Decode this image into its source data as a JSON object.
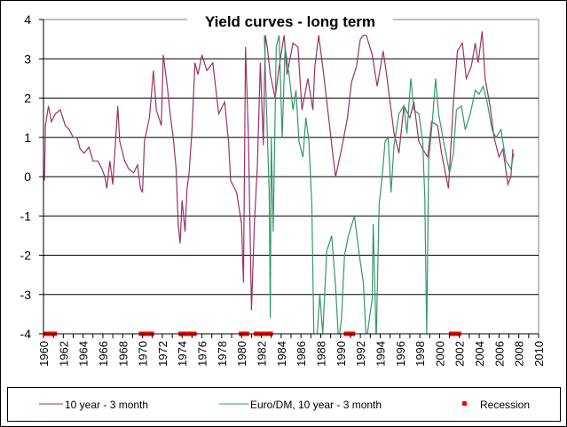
{
  "chart_data": {
    "type": "line",
    "title": "Yield curves - long term",
    "xlabel": "",
    "ylabel": "",
    "xlim": [
      1960,
      2010
    ],
    "ylim": [
      -4,
      4
    ],
    "x_ticks": [
      "1960",
      "1962",
      "1964",
      "1966",
      "1968",
      "1970",
      "1972",
      "1974",
      "1976",
      "1978",
      "1980",
      "1982",
      "1984",
      "1986",
      "1988",
      "1990",
      "1992",
      "1994",
      "1996",
      "1998",
      "2000",
      "2002",
      "2004",
      "2006",
      "2008",
      "2010"
    ],
    "y_ticks": [
      "-4",
      "-3",
      "-2",
      "-1",
      "0",
      "1",
      "2",
      "3",
      "4"
    ],
    "grid": "horizontal",
    "legend_position": "bottom",
    "colors": {
      "us": "#993366",
      "euro": "#339966",
      "recession": "#ff0000",
      "grid": "#000000",
      "frame": "#808080"
    },
    "series": [
      {
        "name": "10 year - 3 month",
        "color": "#993366",
        "points": [
          [
            1960.0,
            0.1
          ],
          [
            1960.1,
            -0.1
          ],
          [
            1960.2,
            1.3
          ],
          [
            1960.5,
            1.8
          ],
          [
            1960.8,
            1.4
          ],
          [
            1961.2,
            1.6
          ],
          [
            1961.7,
            1.7
          ],
          [
            1962.2,
            1.3
          ],
          [
            1962.6,
            1.2
          ],
          [
            1963.0,
            1.0
          ],
          [
            1963.4,
            1.0
          ],
          [
            1963.7,
            0.7
          ],
          [
            1964.1,
            0.6
          ],
          [
            1964.6,
            0.75
          ],
          [
            1965.0,
            0.4
          ],
          [
            1965.5,
            0.4
          ],
          [
            1965.9,
            0.2
          ],
          [
            1966.2,
            0.0
          ],
          [
            1966.4,
            -0.3
          ],
          [
            1966.7,
            0.4
          ],
          [
            1967.0,
            -0.2
          ],
          [
            1967.3,
            1.0
          ],
          [
            1967.5,
            1.8
          ],
          [
            1967.7,
            0.9
          ],
          [
            1968.2,
            0.4
          ],
          [
            1968.6,
            0.2
          ],
          [
            1969.1,
            0.1
          ],
          [
            1969.5,
            0.3
          ],
          [
            1969.8,
            -0.3
          ],
          [
            1970.0,
            -0.4
          ],
          [
            1970.2,
            0.9
          ],
          [
            1970.7,
            1.5
          ],
          [
            1971.1,
            2.7
          ],
          [
            1971.4,
            1.7
          ],
          [
            1971.9,
            1.3
          ],
          [
            1972.1,
            3.1
          ],
          [
            1972.5,
            2.3
          ],
          [
            1972.8,
            1.6
          ],
          [
            1973.1,
            1.0
          ],
          [
            1973.4,
            0.2
          ],
          [
            1973.6,
            -1.2
          ],
          [
            1973.8,
            -1.7
          ],
          [
            1974.0,
            -0.6
          ],
          [
            1974.3,
            -1.4
          ],
          [
            1974.5,
            -0.3
          ],
          [
            1974.7,
            0.1
          ],
          [
            1975.0,
            1.2
          ],
          [
            1975.3,
            2.9
          ],
          [
            1975.6,
            2.6
          ],
          [
            1976.0,
            3.1
          ],
          [
            1976.5,
            2.7
          ],
          [
            1977.1,
            2.9
          ],
          [
            1977.7,
            1.6
          ],
          [
            1978.3,
            1.9
          ],
          [
            1978.7,
            0.85
          ],
          [
            1978.9,
            -0.1
          ],
          [
            1979.5,
            -0.4
          ],
          [
            1980.0,
            -1.2
          ],
          [
            1980.2,
            -2.7
          ],
          [
            1980.4,
            3.3
          ],
          [
            1980.7,
            1.0
          ],
          [
            1981.0,
            -3.4
          ],
          [
            1981.3,
            -1.2
          ],
          [
            1981.6,
            0.3
          ],
          [
            1981.9,
            2.9
          ],
          [
            1982.2,
            0.8
          ],
          [
            1982.4,
            3.6
          ],
          [
            1982.6,
            3.3
          ],
          [
            1982.9,
            2.6
          ],
          [
            1983.4,
            2.0
          ],
          [
            1983.8,
            2.8
          ],
          [
            1984.3,
            3.6
          ],
          [
            1984.6,
            2.6
          ],
          [
            1985.2,
            3.4
          ],
          [
            1985.7,
            3.3
          ],
          [
            1986.1,
            1.7
          ],
          [
            1986.7,
            2.5
          ],
          [
            1987.2,
            1.7
          ],
          [
            1987.4,
            2.8
          ],
          [
            1987.8,
            3.6
          ],
          [
            1988.3,
            2.6
          ],
          [
            1988.8,
            1.5
          ],
          [
            1989.2,
            0.6
          ],
          [
            1989.5,
            0.0
          ],
          [
            1990.1,
            0.7
          ],
          [
            1990.7,
            1.5
          ],
          [
            1991.1,
            2.4
          ],
          [
            1991.6,
            2.8
          ],
          [
            1992.0,
            3.5
          ],
          [
            1992.3,
            3.6
          ],
          [
            1992.6,
            3.6
          ],
          [
            1993.2,
            3.1
          ],
          [
            1993.7,
            2.3
          ],
          [
            1994.3,
            3.2
          ],
          [
            1994.6,
            2.7
          ],
          [
            1995.0,
            1.9
          ],
          [
            1995.4,
            1.1
          ],
          [
            1995.9,
            0.6
          ],
          [
            1996.4,
            1.8
          ],
          [
            1997.0,
            1.5
          ],
          [
            1997.4,
            1.9
          ],
          [
            1997.9,
            0.9
          ],
          [
            1998.3,
            0.7
          ],
          [
            1998.8,
            0.5
          ],
          [
            1999.2,
            1.4
          ],
          [
            1999.8,
            1.3
          ],
          [
            2000.2,
            0.6
          ],
          [
            2000.9,
            -0.3
          ],
          [
            2001.4,
            1.9
          ],
          [
            2001.8,
            3.2
          ],
          [
            2002.3,
            3.4
          ],
          [
            2002.7,
            2.5
          ],
          [
            2003.2,
            2.8
          ],
          [
            2003.6,
            3.4
          ],
          [
            2003.9,
            2.9
          ],
          [
            2004.3,
            3.7
          ],
          [
            2004.6,
            2.5
          ],
          [
            2005.1,
            1.8
          ],
          [
            2005.5,
            1.0
          ],
          [
            2006.0,
            0.5
          ],
          [
            2006.4,
            0.7
          ],
          [
            2006.9,
            -0.2
          ],
          [
            2007.2,
            0.0
          ],
          [
            2007.4,
            0.7
          ]
        ]
      },
      {
        "name": "Euro/DM, 10 year - 3 month",
        "color": "#339966",
        "points": [
          [
            1982.3,
            3.6
          ],
          [
            1982.5,
            1.9
          ],
          [
            1982.8,
            -0.4
          ],
          [
            1982.9,
            -3.6
          ],
          [
            1983.0,
            1.0
          ],
          [
            1983.2,
            -1.4
          ],
          [
            1983.5,
            3.3
          ],
          [
            1983.8,
            3.6
          ],
          [
            1984.1,
            1.0
          ],
          [
            1984.4,
            3.3
          ],
          [
            1984.8,
            2.6
          ],
          [
            1985.2,
            1.7
          ],
          [
            1985.5,
            2.2
          ],
          [
            1985.8,
            0.9
          ],
          [
            1986.2,
            0.5
          ],
          [
            1986.5,
            1.5
          ],
          [
            1986.8,
            0.9
          ],
          [
            1987.1,
            -0.7
          ],
          [
            1987.3,
            -4.0
          ],
          [
            1987.6,
            -4.2
          ],
          [
            1987.9,
            -3.0
          ],
          [
            1988.2,
            -4.0
          ],
          [
            1988.6,
            -1.9
          ],
          [
            1989.1,
            -1.5
          ],
          [
            1989.5,
            -2.8
          ],
          [
            1989.8,
            -4.2
          ],
          [
            1990.1,
            -3.6
          ],
          [
            1990.4,
            -2.0
          ],
          [
            1990.8,
            -1.5
          ],
          [
            1991.4,
            -1.0
          ],
          [
            1991.9,
            -2.0
          ],
          [
            1992.3,
            -2.7
          ],
          [
            1992.6,
            -4.2
          ],
          [
            1993.2,
            -3.1
          ],
          [
            1993.3,
            -1.2
          ],
          [
            1993.6,
            -4.2
          ],
          [
            1993.9,
            -0.7
          ],
          [
            1994.2,
            0.0
          ],
          [
            1994.5,
            0.9
          ],
          [
            1994.8,
            1.0
          ],
          [
            1995.1,
            -0.4
          ],
          [
            1995.4,
            0.8
          ],
          [
            1995.9,
            1.6
          ],
          [
            1996.4,
            1.8
          ],
          [
            1996.7,
            1.1
          ],
          [
            1997.1,
            2.5
          ],
          [
            1997.4,
            1.7
          ],
          [
            1997.9,
            1.6
          ],
          [
            1998.3,
            0.9
          ],
          [
            1998.5,
            -0.5
          ],
          [
            1998.7,
            -4.0
          ],
          [
            1998.9,
            0.4
          ],
          [
            1999.3,
            1.5
          ],
          [
            1999.6,
            2.5
          ],
          [
            1999.9,
            1.6
          ],
          [
            2000.4,
            0.9
          ],
          [
            2001.0,
            0.1
          ],
          [
            2001.4,
            0.6
          ],
          [
            2001.7,
            1.7
          ],
          [
            2002.2,
            1.8
          ],
          [
            2002.6,
            1.2
          ],
          [
            2003.1,
            1.6
          ],
          [
            2003.6,
            2.2
          ],
          [
            2004.0,
            2.1
          ],
          [
            2004.4,
            2.3
          ],
          [
            2004.8,
            1.9
          ],
          [
            2005.3,
            1.2
          ],
          [
            2005.7,
            1.0
          ],
          [
            2006.2,
            1.2
          ],
          [
            2006.7,
            0.4
          ],
          [
            2007.2,
            0.2
          ],
          [
            2007.5,
            0.6
          ]
        ]
      }
    ],
    "recession": {
      "name": "Recession",
      "color": "#ff0000",
      "value": -4,
      "periods": [
        [
          1960.3,
          1961.1
        ],
        [
          1969.9,
          1970.9
        ],
        [
          1973.9,
          1975.2
        ],
        [
          1980.0,
          1980.5
        ],
        [
          1981.5,
          1982.9
        ],
        [
          1990.6,
          1991.2
        ],
        [
          2001.2,
          2001.9
        ]
      ]
    },
    "legend": [
      "10 year - 3 month",
      "Euro/DM, 10 year - 3 month",
      "Recession"
    ]
  }
}
